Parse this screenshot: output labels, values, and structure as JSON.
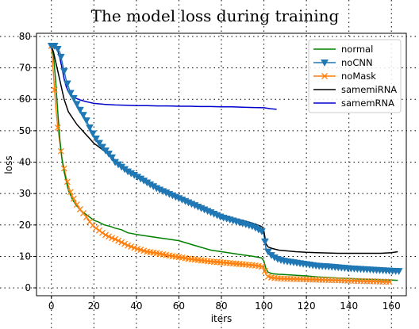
{
  "chart_data": {
    "type": "line",
    "title": "The model loss during training",
    "xlabel": "iters",
    "ylabel": "loss",
    "xlim": [
      -7,
      167
    ],
    "ylim": [
      -2.5,
      81
    ],
    "xticks": [
      0,
      20,
      40,
      60,
      80,
      100,
      120,
      140,
      160
    ],
    "yticks": [
      0,
      10,
      20,
      30,
      40,
      50,
      60,
      70,
      80
    ],
    "grid": "dotted",
    "legend_position": "top-right",
    "series": [
      {
        "name": "normal",
        "color": "#008000",
        "marker": "none",
        "x": [
          0,
          1,
          2,
          3,
          4,
          5,
          6,
          7,
          8,
          9,
          10,
          12,
          14,
          16,
          18,
          20,
          22,
          25,
          28,
          30,
          33,
          36,
          40,
          45,
          50,
          55,
          60,
          65,
          70,
          75,
          80,
          85,
          90,
          95,
          99,
          100,
          101,
          102,
          104,
          107,
          110,
          115,
          120,
          125,
          130,
          135,
          140,
          145,
          150,
          155,
          160,
          163
        ],
        "y": [
          77,
          74,
          66,
          56,
          47,
          41,
          37,
          34,
          31,
          29.5,
          28,
          26,
          24.5,
          23.5,
          22.5,
          21.5,
          21,
          20,
          19.5,
          19,
          18.5,
          17.5,
          17,
          16.5,
          16,
          15.5,
          15,
          14,
          13,
          12,
          11.5,
          11,
          10.5,
          10,
          9.5,
          8.5,
          6,
          5,
          4.5,
          4.3,
          4.2,
          4,
          3.8,
          3.5,
          3.3,
          3.1,
          3,
          2.8,
          2.7,
          2.6,
          2.5,
          2.4
        ]
      },
      {
        "name": "noCNN",
        "color": "#1f77b4",
        "marker": "triangle-down",
        "x": [
          0,
          2,
          4,
          5,
          6,
          7,
          8,
          9,
          10,
          12,
          14,
          16,
          18,
          20,
          22,
          25,
          28,
          30,
          33,
          36,
          40,
          45,
          50,
          55,
          60,
          65,
          70,
          75,
          80,
          85,
          90,
          95,
          99,
          100,
          101,
          102,
          104,
          107,
          110,
          115,
          120,
          125,
          130,
          135,
          140,
          145,
          150,
          155,
          160,
          164
        ],
        "y": [
          77,
          77,
          75,
          72,
          69,
          66,
          64,
          62,
          61,
          58.5,
          56,
          54,
          51,
          48.5,
          46.5,
          44,
          42,
          40,
          38.5,
          37,
          35.5,
          33.5,
          31.5,
          30,
          28.5,
          27,
          25.5,
          24,
          22.5,
          21.5,
          20.5,
          19.5,
          18,
          17,
          12.5,
          11.5,
          10,
          9,
          8.5,
          8,
          7.5,
          7,
          6.8,
          6.5,
          6.2,
          6,
          5.8,
          5.6,
          5.4,
          5.3
        ]
      },
      {
        "name": "noMask",
        "color": "#ff7f0e",
        "marker": "x",
        "x": [
          0,
          1,
          2,
          3,
          4,
          5,
          6,
          7,
          8,
          9,
          10,
          12,
          14,
          16,
          18,
          20,
          22,
          25,
          28,
          30,
          33,
          36,
          40,
          45,
          50,
          55,
          60,
          65,
          70,
          75,
          80,
          85,
          90,
          95,
          99,
          100,
          101,
          102,
          104,
          107,
          110,
          115,
          120,
          125,
          130,
          135,
          140,
          145,
          150,
          155,
          160
        ],
        "y": [
          77,
          68,
          58,
          51,
          46,
          41,
          38,
          35,
          32.5,
          30.5,
          29,
          26.5,
          24.5,
          23,
          21,
          19.5,
          18.5,
          17,
          16,
          15.5,
          14.5,
          13.5,
          12.5,
          11.5,
          11,
          10.3,
          9.8,
          9.2,
          8.8,
          8.4,
          8.1,
          7.8,
          7.5,
          7.2,
          6.8,
          6.5,
          4.2,
          3.6,
          3.2,
          3,
          2.9,
          2.8,
          2.7,
          2.6,
          2.5,
          2.4,
          2.3,
          2.2,
          2.1,
          2,
          1.9
        ]
      },
      {
        "name": "samemiRNA",
        "color": "#000000",
        "marker": "none",
        "x": [
          0,
          1,
          2,
          3,
          4,
          5,
          6,
          7,
          8,
          9,
          10,
          11,
          12,
          14,
          16,
          18,
          20,
          22,
          25,
          28,
          30,
          33,
          36,
          40,
          45,
          50,
          55,
          60,
          65,
          70,
          75,
          80,
          85,
          90,
          95,
          99,
          100,
          101,
          102,
          104,
          107,
          110,
          115,
          120,
          125,
          130,
          135,
          140,
          145,
          150,
          155,
          160,
          163
        ],
        "y": [
          77,
          75,
          72,
          69,
          66,
          63,
          60,
          58,
          56,
          55,
          54,
          53,
          52,
          50.5,
          49,
          47.5,
          46,
          45,
          43.5,
          42,
          40.5,
          39,
          37.5,
          36,
          34,
          32,
          30,
          28.5,
          27,
          25.5,
          24.5,
          23,
          22,
          21.5,
          20.5,
          19.5,
          18,
          14,
          13,
          12.5,
          12,
          11.8,
          11.5,
          11.3,
          11.2,
          11.1,
          11,
          11,
          11,
          11,
          11,
          11.2,
          11.5
        ]
      },
      {
        "name": "samemRNA",
        "color": "#0000cc",
        "marker": "none",
        "x": [
          0,
          1,
          2,
          3,
          4,
          5,
          6,
          7,
          8,
          9,
          10,
          12,
          14,
          16,
          18,
          20,
          25,
          30,
          35,
          40,
          45,
          50,
          55,
          60,
          65,
          70,
          75,
          80,
          85,
          90,
          95,
          100,
          103,
          106
        ],
        "y": [
          77,
          77,
          76.5,
          75.5,
          73,
          70,
          66.5,
          64,
          62.5,
          61.5,
          60.8,
          60.2,
          59.7,
          59.3,
          59,
          58.7,
          58.4,
          58.2,
          58.1,
          58,
          58,
          57.9,
          57.9,
          57.8,
          57.8,
          57.7,
          57.7,
          57.6,
          57.6,
          57.5,
          57.4,
          57.3,
          57,
          56.8
        ]
      }
    ]
  }
}
